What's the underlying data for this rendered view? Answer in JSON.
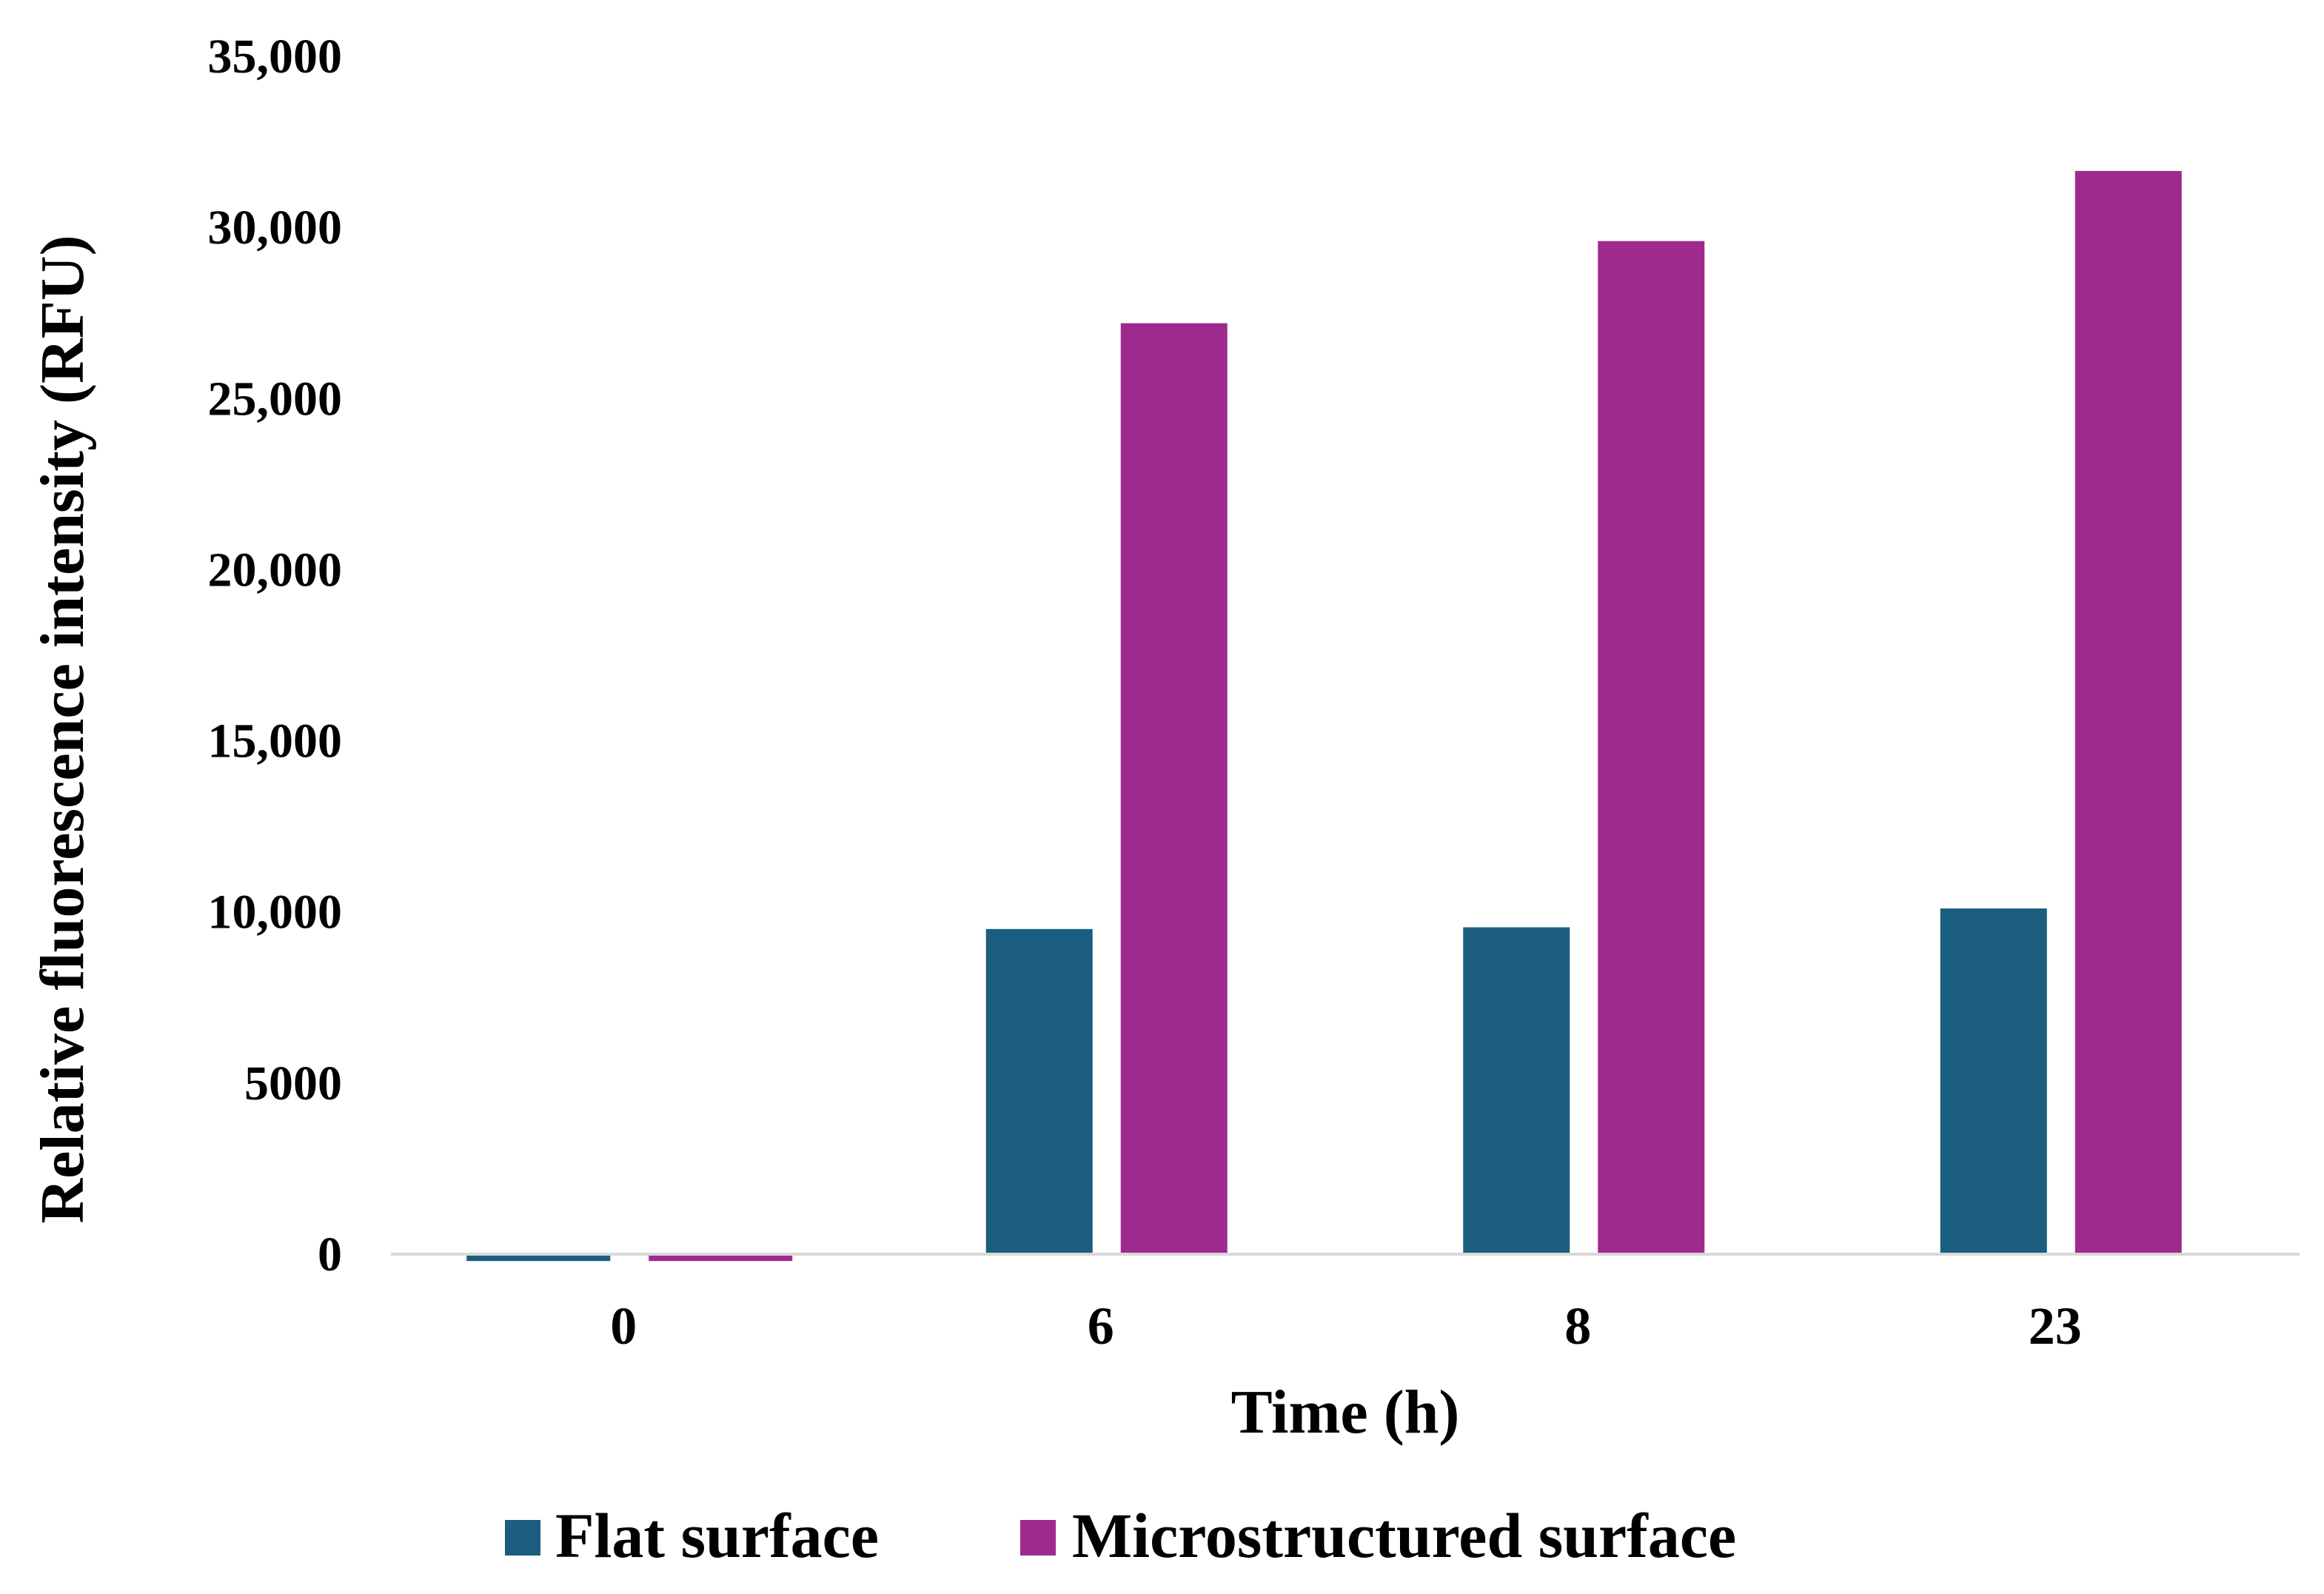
{
  "chart_data": {
    "type": "bar",
    "xlabel": "Time (h)",
    "ylabel": "Relative fluorescence intensity (RFU)",
    "ylim": [
      0,
      35000
    ],
    "yticks": [
      0,
      5000,
      10000,
      15000,
      20000,
      25000,
      30000,
      35000
    ],
    "ytick_labels": [
      "0",
      "5000",
      "10,000",
      "15,000",
      "20,000",
      "25,000",
      "30,000",
      "35,000"
    ],
    "categories": [
      "0",
      "6",
      "8",
      "23"
    ],
    "series": [
      {
        "name": "Flat surface",
        "color": "#1b5e80",
        "values": [
          -200,
          9500,
          9550,
          10100
        ]
      },
      {
        "name": "Microstructured surface",
        "color": "#9e2a8e",
        "values": [
          -200,
          27200,
          29600,
          31650
        ]
      }
    ],
    "grid": false,
    "legend_position": "bottom-center"
  }
}
